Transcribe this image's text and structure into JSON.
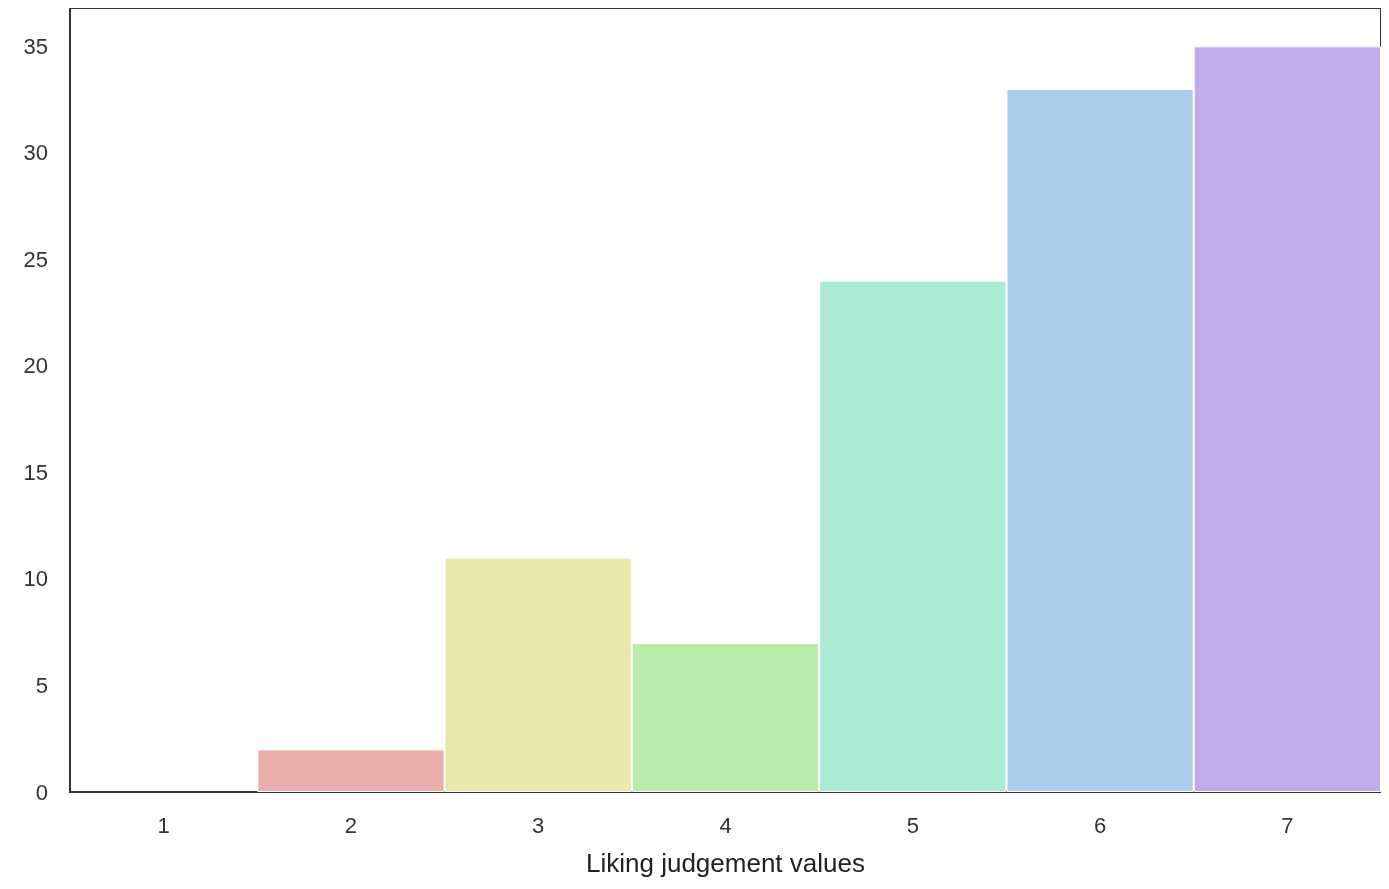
{
  "chart_data": {
    "type": "bar",
    "xlabel": "Liking judgement values",
    "categories": [
      "1",
      "2",
      "3",
      "4",
      "5",
      "6",
      "7"
    ],
    "values": [
      0,
      2,
      11,
      7,
      24,
      33,
      35
    ],
    "colors": [
      "#e5abeb",
      "#eaaeab",
      "#ece7ab",
      "#baebab",
      "#abebd5",
      "#abcced",
      "#c0abeb"
    ],
    "ylim": [
      0,
      36.8
    ],
    "yticks": [
      0,
      5,
      10,
      15,
      20,
      25,
      30,
      35
    ],
    "grid": false
  }
}
